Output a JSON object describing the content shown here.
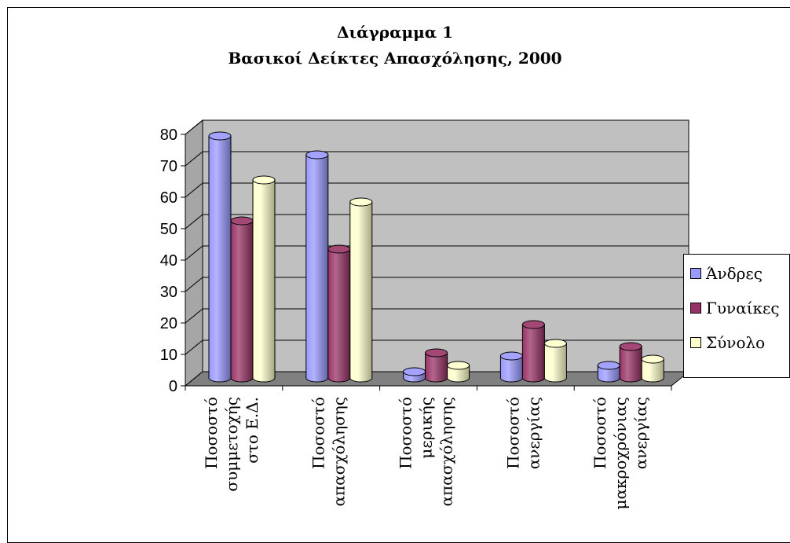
{
  "chart_data": {
    "type": "bar",
    "title": "Διάγραμμα 1",
    "subtitle": "Βασικοί Δείκτες Απασχόλησης, 2000",
    "categories": [
      [
        "Ποσοστό",
        "συμμετοχής",
        "στο Ε.Δ."
      ],
      [
        "Ποσοστό",
        "απασχόλησης"
      ],
      [
        "Ποσοστό",
        "μερικής",
        "απασχόλησης"
      ],
      [
        "Ποσοστό",
        "ανεργίας"
      ],
      [
        "Ποσοστό",
        "μακροχρόνιας",
        "ανεργίας"
      ]
    ],
    "series": [
      {
        "name": "Άνδρες",
        "values": [
          77,
          71,
          2,
          7,
          4
        ],
        "color": "#9999ff"
      },
      {
        "name": "Γυναίκες",
        "values": [
          50,
          41,
          8,
          17,
          10
        ],
        "color": "#993366"
      },
      {
        "name": "Σύνολο",
        "values": [
          63,
          56,
          4,
          11,
          6
        ],
        "color": "#ffffcc"
      }
    ],
    "ylim": [
      0,
      80
    ],
    "yticks": [
      "0",
      "10",
      "20",
      "30",
      "40",
      "50",
      "60",
      "70",
      "80"
    ],
    "grid": true,
    "legend_position": "right",
    "wall_color": "#c0c0c0",
    "floor_color": "#808080"
  }
}
